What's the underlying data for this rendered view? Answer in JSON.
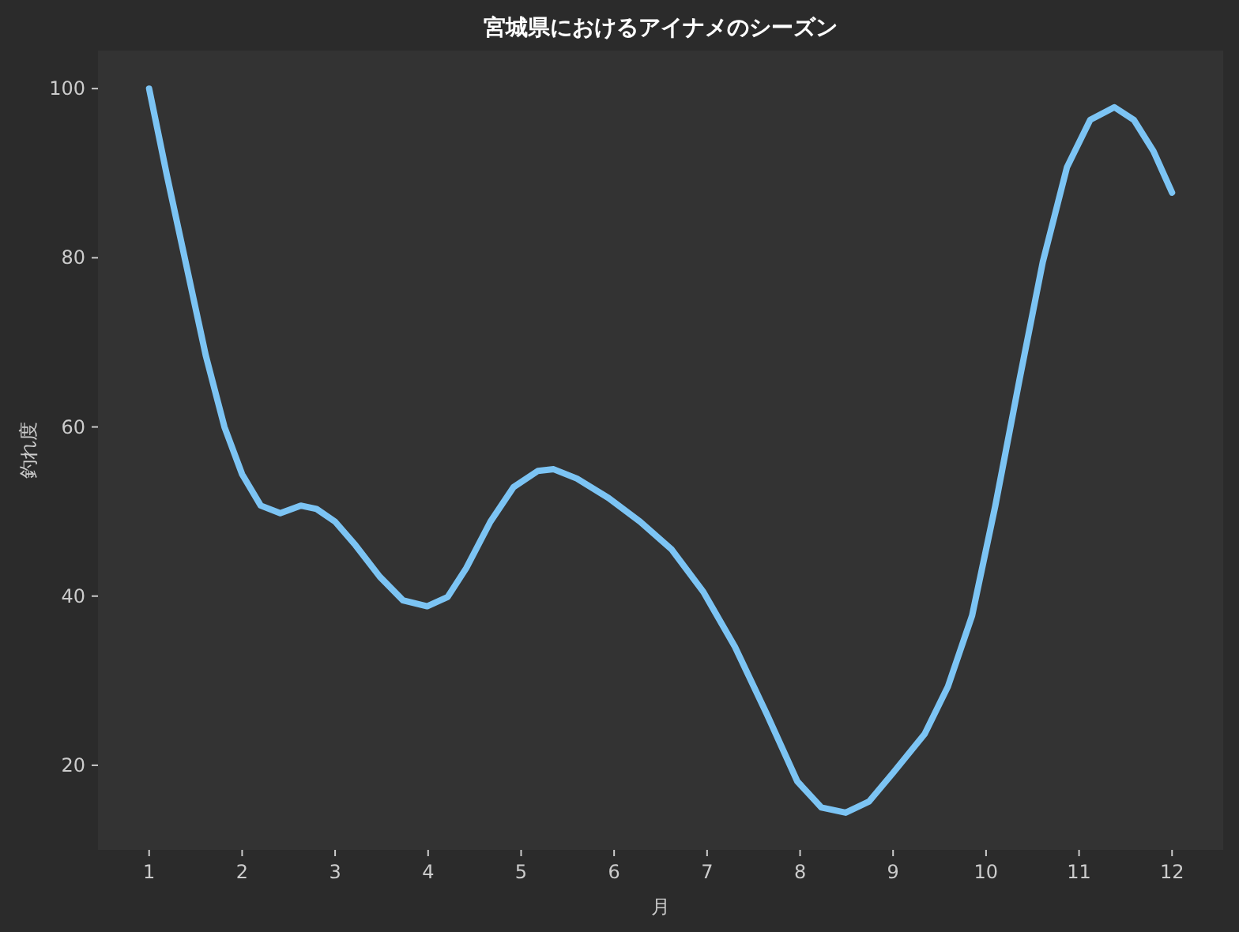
{
  "chart_data": {
    "type": "line",
    "title": "宮城県におけるアイナメのシーズン",
    "xlabel": "月",
    "ylabel": "釣れ度",
    "xlim": [
      0.45,
      12.55
    ],
    "ylim": [
      10,
      104.5
    ],
    "xticks": [
      1,
      2,
      3,
      4,
      5,
      6,
      7,
      8,
      9,
      10,
      11,
      12
    ],
    "yticks": [
      20,
      40,
      60,
      80,
      100
    ],
    "series": [
      {
        "color": "#7cc4f4",
        "line_style": "solid",
        "x": [
          1.0,
          1.19,
          1.41,
          1.61,
          1.81,
          2.0,
          2.2,
          2.41,
          2.63,
          2.8,
          3.0,
          3.22,
          3.48,
          3.73,
          3.99,
          4.21,
          4.41,
          4.67,
          4.92,
          5.18,
          5.35,
          5.6,
          5.94,
          6.28,
          6.62,
          6.96,
          7.3,
          7.64,
          7.97,
          8.23,
          8.49,
          8.74,
          9.0,
          9.34,
          9.59,
          9.85,
          10.1,
          10.36,
          10.61,
          10.87,
          11.12,
          11.38,
          11.59,
          11.8,
          12.0
        ],
        "values": [
          100.0,
          89.8,
          78.6,
          68.4,
          60.0,
          54.4,
          50.7,
          49.8,
          50.7,
          50.3,
          48.8,
          46.0,
          42.3,
          39.5,
          38.8,
          39.9,
          43.3,
          48.8,
          52.9,
          54.8,
          55.0,
          53.9,
          51.6,
          48.8,
          45.5,
          40.5,
          34.0,
          26.1,
          18.1,
          15.0,
          14.4,
          15.7,
          19.1,
          23.7,
          29.3,
          37.7,
          50.7,
          65.6,
          79.5,
          90.7,
          96.3,
          97.8,
          96.3,
          92.6,
          87.7
        ]
      }
    ]
  }
}
